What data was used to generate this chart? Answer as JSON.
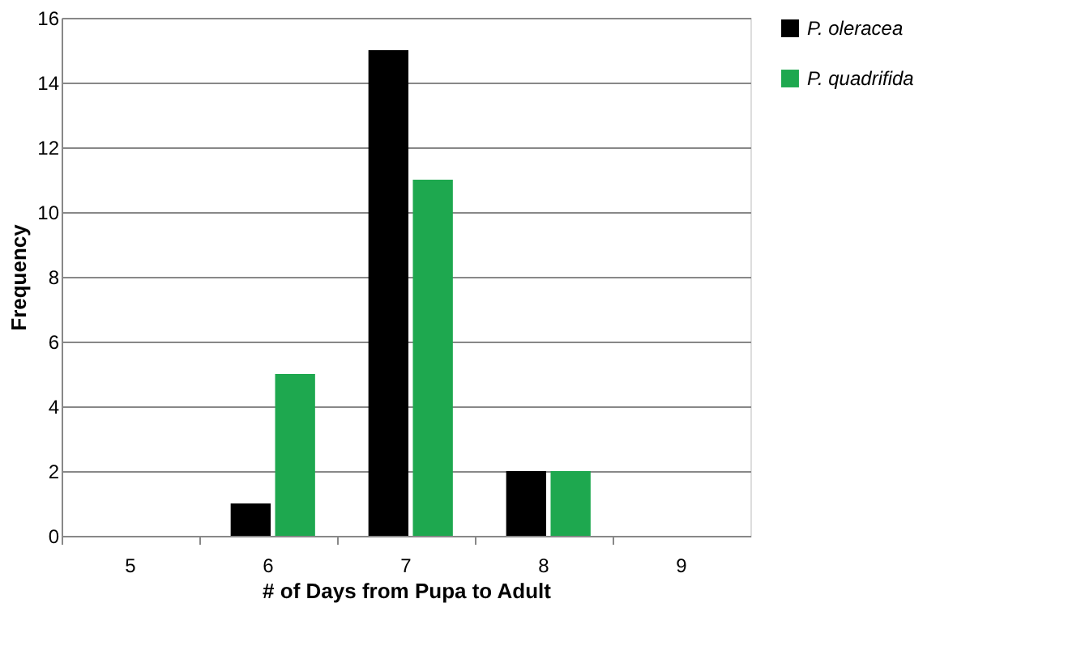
{
  "chart_data": {
    "type": "bar",
    "xlabel": "# of Days  from Pupa to Adult",
    "ylabel": "Frequency",
    "categories": [
      "5",
      "6",
      "7",
      "8",
      "9"
    ],
    "series": [
      {
        "name": "P. oleracea",
        "color": "#000000",
        "values": [
          0,
          1,
          15,
          2,
          0
        ]
      },
      {
        "name": "P. quadrifida",
        "color": "#1ea84f",
        "values": [
          0,
          5,
          11,
          2,
          0
        ]
      }
    ],
    "ylim": [
      0,
      16
    ],
    "yticks": [
      0,
      2,
      4,
      6,
      8,
      10,
      12,
      14,
      16
    ],
    "grid": "y",
    "legend": "right"
  }
}
